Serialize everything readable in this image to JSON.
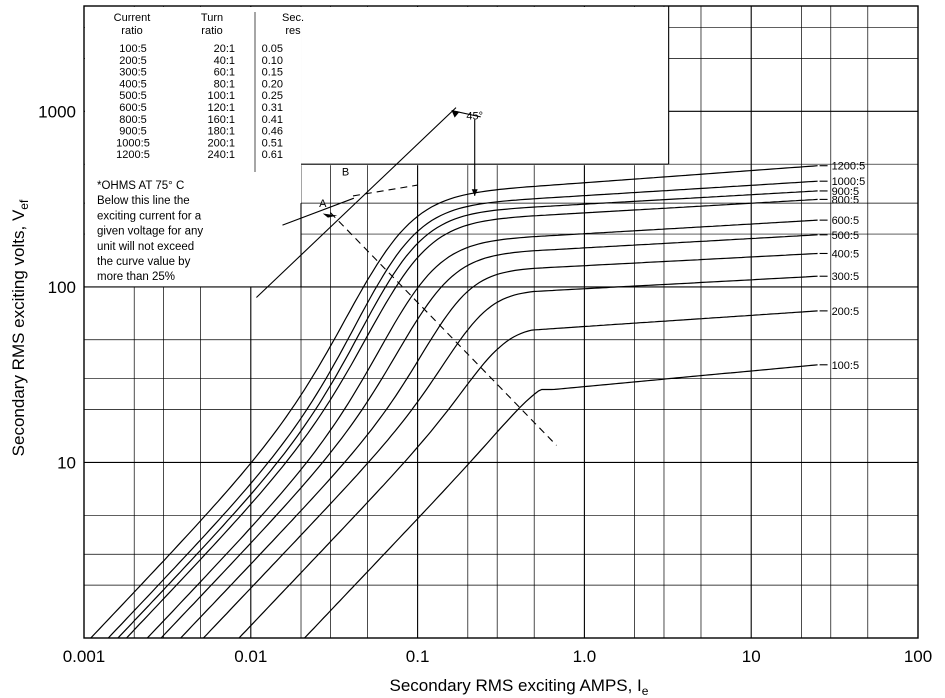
{
  "chart_data": {
    "type": "line",
    "title": "",
    "xscale": "log",
    "yscale": "log",
    "xlim": [
      0.001,
      100
    ],
    "ylim": [
      1,
      3981
    ],
    "xlabel": "Secondary RMS exciting AMPS, I",
    "xlabel_sub": "e",
    "ylabel": "Secondary RMS exciting volts, V",
    "ylabel_sub": "ef",
    "x_ticks": [
      {
        "value": 0.001,
        "label": "0.001"
      },
      {
        "value": 0.01,
        "label": "0.01"
      },
      {
        "value": 0.1,
        "label": "0.1"
      },
      {
        "value": 1,
        "label": "1.0"
      },
      {
        "value": 10,
        "label": "10"
      },
      {
        "value": 100,
        "label": "100"
      }
    ],
    "y_ticks": [
      {
        "value": 10,
        "label": "10"
      },
      {
        "value": 100,
        "label": "100"
      },
      {
        "value": 1000,
        "label": "1000"
      }
    ],
    "grid": true,
    "series": [
      {
        "name": "100:5",
        "x0": 0.021,
        "vsat": 26,
        "vend": 36,
        "knee": 0.65,
        "soft": 0.13
      },
      {
        "name": "200:5",
        "x0": 0.0085,
        "vsat": 55,
        "vend": 73,
        "knee": 0.3,
        "soft": 0.13
      },
      {
        "name": "300:5",
        "x0": 0.0052,
        "vsat": 90,
        "vend": 115,
        "knee": 0.21,
        "soft": 0.14
      },
      {
        "name": "400:5",
        "x0": 0.0038,
        "vsat": 120,
        "vend": 155,
        "knee": 0.15,
        "soft": 0.15
      },
      {
        "name": "500:5",
        "x0": 0.0029,
        "vsat": 148,
        "vend": 198,
        "knee": 0.11,
        "soft": 0.17
      },
      {
        "name": "600:5",
        "x0": 0.0024,
        "vsat": 175,
        "vend": 240,
        "knee": 0.085,
        "soft": 0.18
      },
      {
        "name": "800:5",
        "x0": 0.0018,
        "vsat": 228,
        "vend": 315,
        "knee": 0.072,
        "soft": 0.19
      },
      {
        "name": "900:5",
        "x0": 0.0016,
        "vsat": 255,
        "vend": 352,
        "knee": 0.065,
        "soft": 0.19
      },
      {
        "name": "1000:5",
        "x0": 0.0014,
        "vsat": 280,
        "vend": 400,
        "knee": 0.06,
        "soft": 0.19
      },
      {
        "name": "1200:5",
        "x0": 0.0011,
        "vsat": 320,
        "vend": 490,
        "knee": 0.055,
        "soft": 0.2
      }
    ],
    "auxiliary_lines": [
      {
        "name": "knee-45-degree-line",
        "points": [
          [
            0.0108,
            87
          ],
          [
            0.17,
            1050
          ]
        ]
      },
      {
        "name": "limit-line",
        "points": [
          [
            0.0155,
            225
          ],
          [
            0.0415,
            320
          ]
        ]
      },
      {
        "name": "knee-dashed-locus",
        "points": [
          [
            0.03,
            265
          ],
          [
            0.68,
            12.5
          ]
        ],
        "dashed": true
      },
      {
        "name": "point-b-dashed-tangent",
        "points": [
          [
            0.041,
            330
          ],
          [
            0.1,
            380
          ]
        ],
        "dashed": true
      }
    ],
    "annotations": [
      {
        "text": "A",
        "x": 0.027,
        "y": 285
      },
      {
        "text": "B",
        "x": 0.037,
        "y": 430
      },
      {
        "text": "45°",
        "x": 0.22,
        "y": 900
      }
    ],
    "data_table": {
      "headers": [
        [
          "Current",
          "ratio"
        ],
        [
          "Turn",
          "ratio"
        ],
        [
          "Sec.",
          "res"
        ]
      ],
      "rows": [
        [
          "100:5",
          "20:1",
          "0.05"
        ],
        [
          "200:5",
          "40:1",
          "0.10"
        ],
        [
          "300:5",
          "60:1",
          "0.15"
        ],
        [
          "400:5",
          "80:1",
          "0.20"
        ],
        [
          "500:5",
          "100:1",
          "0.25"
        ],
        [
          "600:5",
          "120:1",
          "0.31"
        ],
        [
          "800:5",
          "160:1",
          "0.41"
        ],
        [
          "900:5",
          "180:1",
          "0.46"
        ],
        [
          "1000:5",
          "200:1",
          "0.51"
        ],
        [
          "1200:5",
          "240:1",
          "0.61"
        ]
      ]
    },
    "notes": [
      "*OHMS AT 75° C",
      "Below this line the",
      "exciting current for a",
      "given voltage for any",
      "unit will not exceed",
      "the curve value by",
      "more than 25%"
    ]
  }
}
